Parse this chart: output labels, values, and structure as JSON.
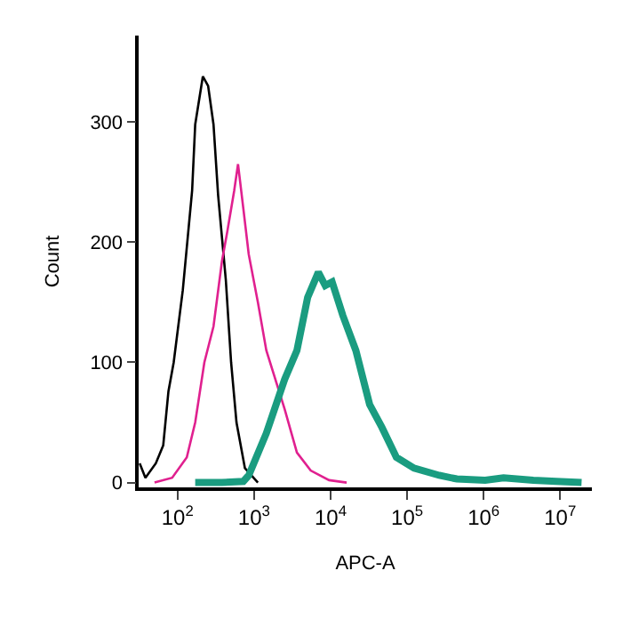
{
  "chart_data": {
    "type": "line",
    "xlabel": "APC-A",
    "ylabel": "Count",
    "log": "x",
    "marker": "none",
    "xlim": [
      31,
      26000000
    ],
    "xticks": [
      {
        "value": 100,
        "label": "10$^{2}$"
      },
      {
        "value": 1000,
        "label": "10$^{3}$"
      },
      {
        "value": 10000,
        "label": "10$^{4}$"
      },
      {
        "value": 100000,
        "label": "10$^{5}$"
      },
      {
        "value": 1000000,
        "label": "10$^{6}$"
      },
      {
        "value": 10000000,
        "label": "10$^{7}$"
      }
    ],
    "ylim": [
      -4,
      372
    ],
    "yticks": [
      0,
      100,
      200,
      300
    ],
    "series": [
      {
        "color": "#000000",
        "x": [
          32,
          38,
          52,
          65,
          76,
          89,
          117,
          155,
          170,
          214,
          251,
          295,
          339,
          427,
          501,
          589,
          759,
          1122
        ],
        "values": [
          16,
          4,
          16,
          31,
          76,
          100,
          160,
          243,
          298,
          338,
          330,
          298,
          239,
          169,
          100,
          50,
          12,
          0
        ]
      },
      {
        "color": "#e0208f",
        "x": [
          50,
          85,
          132,
          170,
          224,
          295,
          380,
          447,
          550,
          617,
          724,
          851,
          1122,
          1445,
          2512,
          3631,
          5495,
          9550,
          16218
        ],
        "values": [
          0,
          4,
          21,
          50,
          100,
          130,
          184,
          209,
          243,
          265,
          228,
          190,
          150,
          110,
          61,
          25,
          10,
          2,
          0
        ]
      },
      {
        "color": "#1a9c80",
        "x": [
          170,
          380,
          724,
          851,
          1445,
          2512,
          3631,
          5012,
          6918,
          8511,
          10471,
          14454,
          21380,
          32359,
          46774,
          72444,
          123027,
          263027,
          446684,
          1047152,
          1819701,
          4466836,
          8912509,
          19054607
        ],
        "values": [
          0,
          0,
          1,
          6,
          41,
          86,
          110,
          154,
          175,
          164,
          167,
          139,
          110,
          65,
          46,
          21,
          12,
          6,
          3,
          2,
          4,
          2,
          1,
          0
        ]
      }
    ]
  }
}
